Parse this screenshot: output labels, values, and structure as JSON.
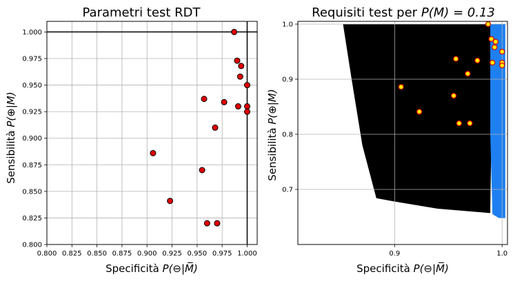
{
  "chart_data": [
    {
      "type": "scatter",
      "title": "Parametri test RDT",
      "xlabel_main": "Specificità ",
      "xlabel_math": "P(⊖|M̅)",
      "ylabel_main": "Sensibilità ",
      "ylabel_math": "P(⊕|M)",
      "xlim": [
        0.8,
        1.01
      ],
      "ylim": [
        0.8,
        1.01
      ],
      "xticks": [
        "0.800",
        "0.825",
        "0.850",
        "0.875",
        "0.900",
        "0.925",
        "0.950",
        "0.975",
        "1.000"
      ],
      "yticks": [
        "0.800",
        "0.825",
        "0.850",
        "0.875",
        "0.900",
        "0.925",
        "0.950",
        "0.975",
        "1.000"
      ],
      "grid": true,
      "reference_lines": {
        "x": 1.0,
        "y": 1.0
      },
      "point_color": "#e00000",
      "points": [
        {
          "x": 0.987,
          "y": 1.0
        },
        {
          "x": 0.99,
          "y": 0.973
        },
        {
          "x": 0.994,
          "y": 0.968
        },
        {
          "x": 0.993,
          "y": 0.958
        },
        {
          "x": 1.0,
          "y": 0.95
        },
        {
          "x": 0.957,
          "y": 0.937
        },
        {
          "x": 0.977,
          "y": 0.934
        },
        {
          "x": 0.991,
          "y": 0.93
        },
        {
          "x": 1.0,
          "y": 0.93
        },
        {
          "x": 1.0,
          "y": 0.925
        },
        {
          "x": 0.968,
          "y": 0.91
        },
        {
          "x": 0.906,
          "y": 0.886
        },
        {
          "x": 0.955,
          "y": 0.87
        },
        {
          "x": 0.923,
          "y": 0.841
        },
        {
          "x": 0.96,
          "y": 0.82
        },
        {
          "x": 0.97,
          "y": 0.82
        }
      ]
    },
    {
      "type": "scatter",
      "title_main": "Requisiti test per ",
      "title_math": "P(M) = 0.13",
      "xlabel_main": "Specificità ",
      "xlabel_math": "P(⊖|M̅)",
      "ylabel_main": "Sensibilità ",
      "ylabel_math": "P(⊕|M)",
      "xlim": [
        0.81,
        1.005
      ],
      "ylim": [
        0.6,
        1.005
      ],
      "xticks": [
        "0.9",
        "1.0"
      ],
      "yticks": [
        "0.7",
        "0.8",
        "0.9",
        "1.0"
      ],
      "grid": true,
      "region_colors": {
        "black": "#000000",
        "blue": "#1e80f0"
      },
      "point_color": "#ffee00",
      "point_edge": "#e00000",
      "points": [
        {
          "x": 0.987,
          "y": 1.0
        },
        {
          "x": 0.99,
          "y": 0.973
        },
        {
          "x": 0.994,
          "y": 0.968
        },
        {
          "x": 0.993,
          "y": 0.958
        },
        {
          "x": 1.0,
          "y": 0.95
        },
        {
          "x": 0.957,
          "y": 0.937
        },
        {
          "x": 0.977,
          "y": 0.934
        },
        {
          "x": 0.991,
          "y": 0.93
        },
        {
          "x": 1.0,
          "y": 0.93
        },
        {
          "x": 1.0,
          "y": 0.925
        },
        {
          "x": 0.968,
          "y": 0.91
        },
        {
          "x": 0.906,
          "y": 0.886
        },
        {
          "x": 0.955,
          "y": 0.87
        },
        {
          "x": 0.923,
          "y": 0.841
        },
        {
          "x": 0.96,
          "y": 0.82
        },
        {
          "x": 0.97,
          "y": 0.82
        }
      ]
    }
  ]
}
